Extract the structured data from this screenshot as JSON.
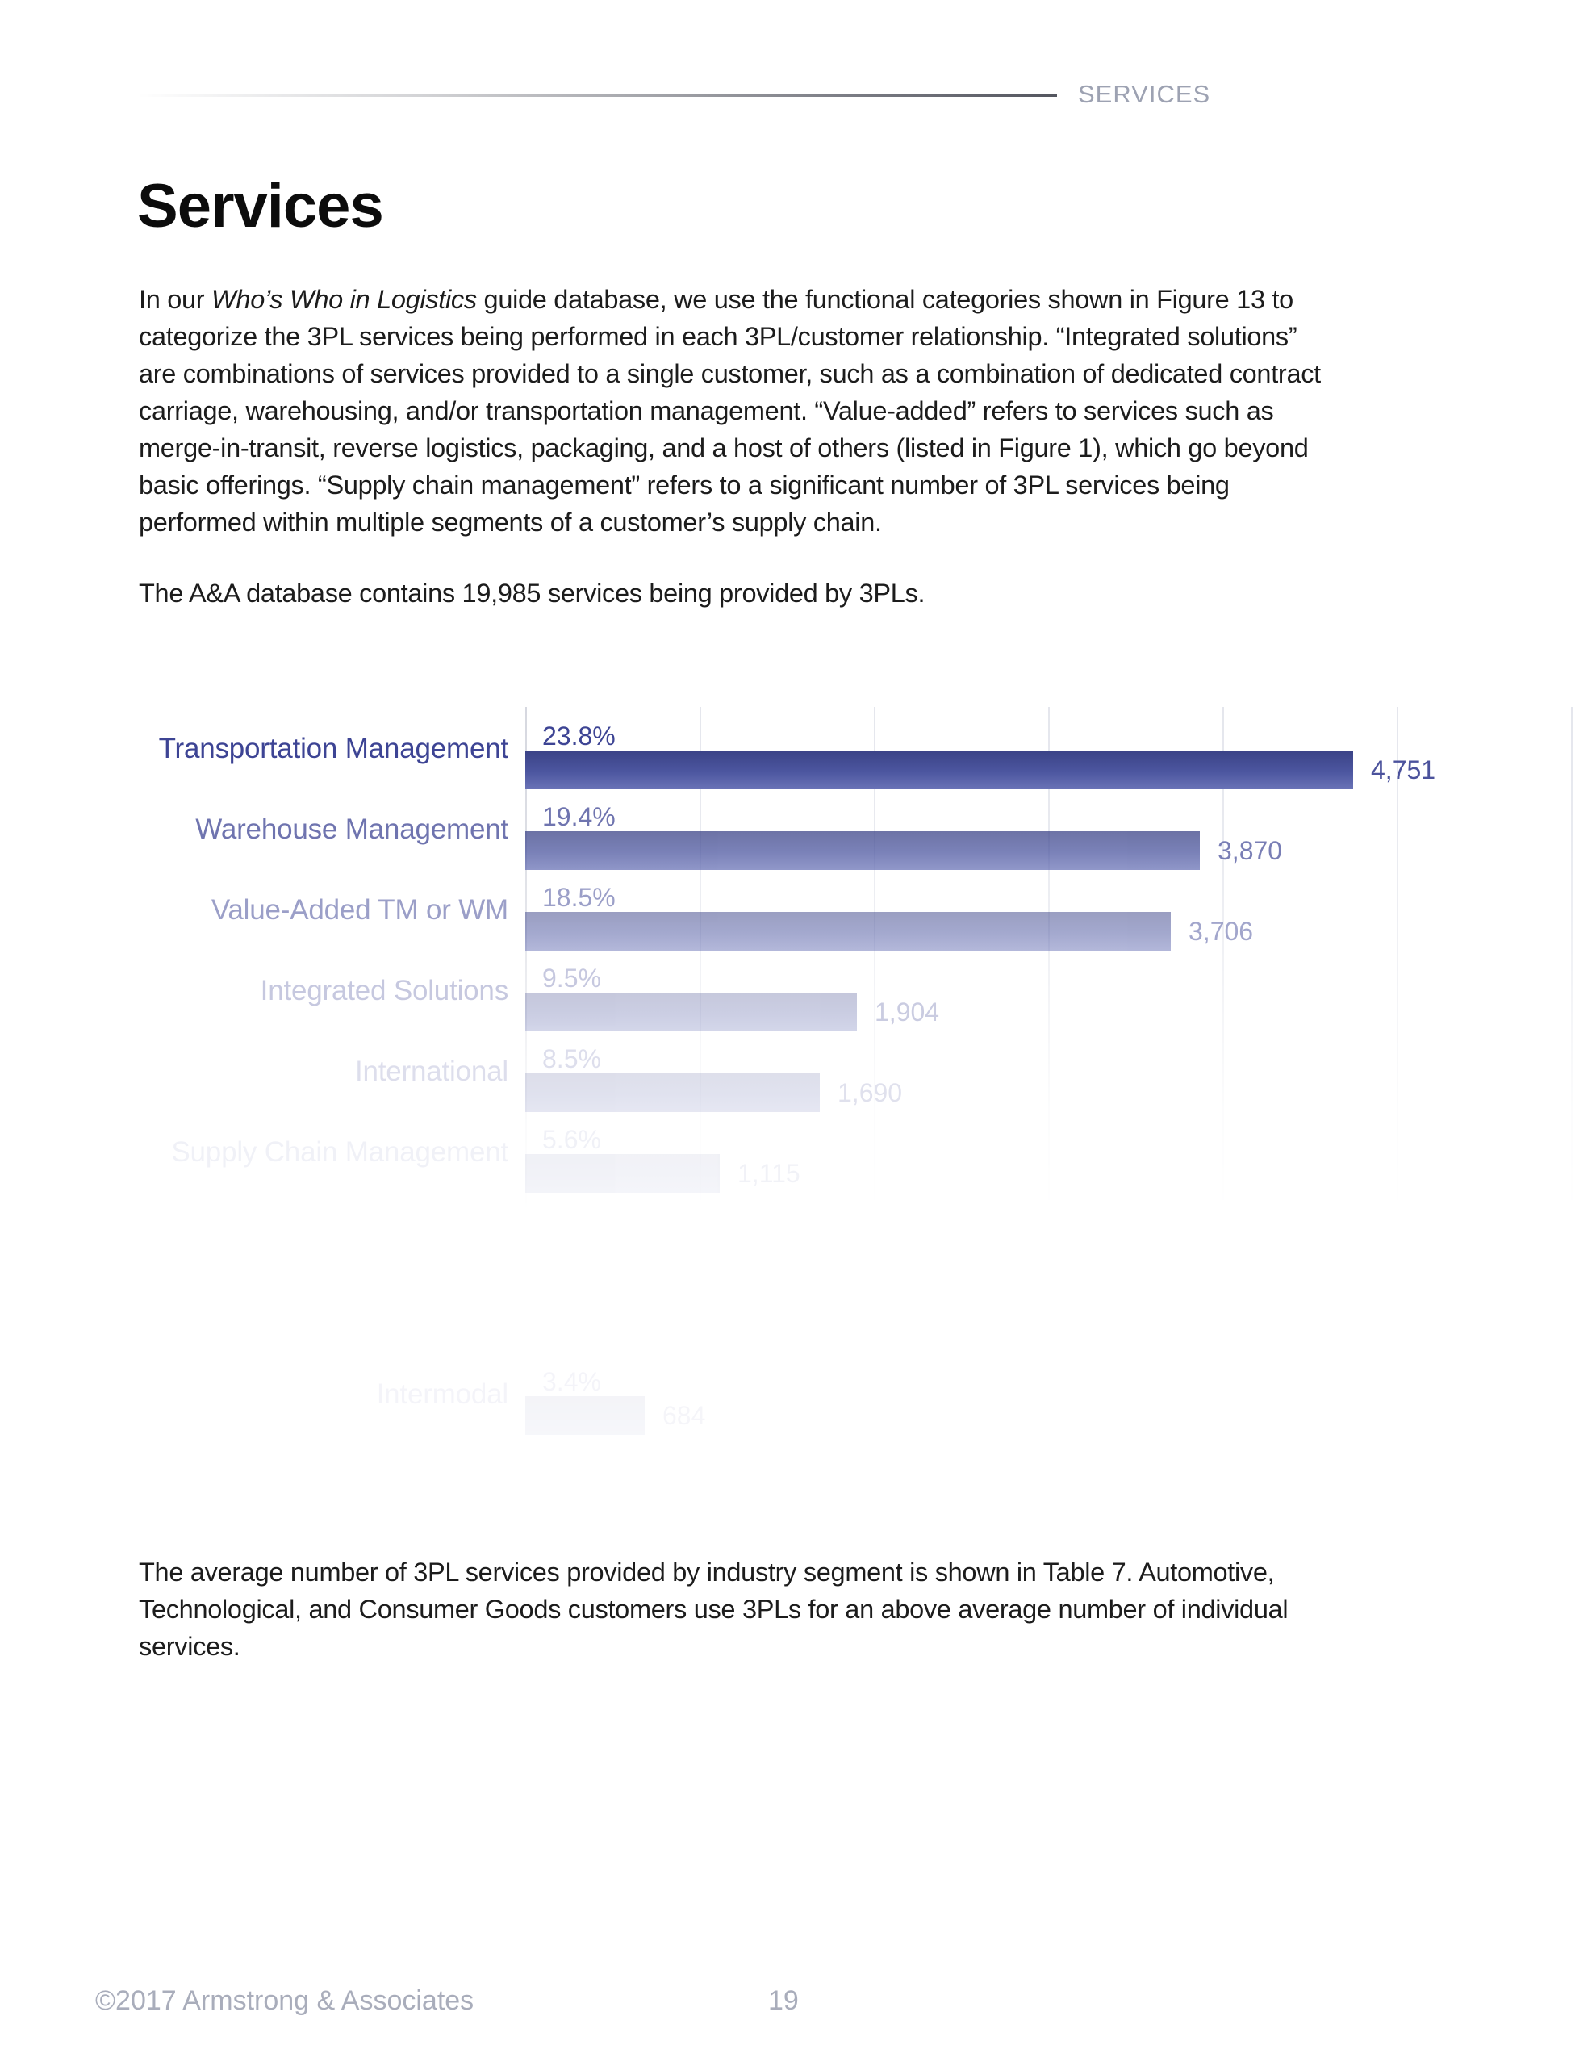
{
  "header": {
    "label": "SERVICES"
  },
  "title": "Services",
  "intro": {
    "line1_pre": "In our ",
    "line1_italic": "Who’s Who in Logistics",
    "line1_post": " guide database, we use the functional categories shown in Figure 13 to",
    "lines": [
      "categorize the 3PL services being performed in each 3PL/customer relationship. “Integrated solutions”",
      "are combinations of services provided to a single customer, such as a combination of dedicated contract",
      "carriage, warehousing, and/or transportation management. “Value-added” refers to services such as",
      "merge-in-transit, reverse logistics, packaging, and a host of others (listed in Figure 1), which go beyond",
      "basic offerings. “Supply chain management” refers to a significant number of 3PL services being",
      "performed within multiple segments of a customer’s supply chain."
    ]
  },
  "database_note": "The A&A database contains 19,985 services being provided by 3PLs.",
  "chart_data": {
    "type": "bar",
    "orientation": "horizontal",
    "title": "",
    "xlabel": "",
    "ylabel": "",
    "x_axis": {
      "max": 6000,
      "gridline_interval": 1000,
      "tick_labels_visible": false,
      "grid": true
    },
    "legend": "none",
    "note": "Figure fades to white toward the bottom: rows 7 and 8 are fully faded to invisible, row 9 (Intermodal) is barely visible.",
    "rows": [
      {
        "row": 1,
        "category": "Transportation Management",
        "percent": "23.8%",
        "value": 4751,
        "value_label": "4,751",
        "visibility": 1.0
      },
      {
        "row": 2,
        "category": "Warehouse Management",
        "percent": "19.4%",
        "value": 3870,
        "value_label": "3,870",
        "visibility": 0.74
      },
      {
        "row": 3,
        "category": "Value-Added TM or WM",
        "percent": "18.5%",
        "value": 3706,
        "value_label": "3,706",
        "visibility": 0.51
      },
      {
        "row": 4,
        "category": "Integrated Solutions",
        "percent": "9.5%",
        "value": 1904,
        "value_label": "1,904",
        "visibility": 0.29
      },
      {
        "row": 5,
        "category": "International",
        "percent": "8.5%",
        "value": 1690,
        "value_label": "1,690",
        "visibility": 0.17
      },
      {
        "row": 6,
        "category": "Supply Chain Management",
        "percent": "5.6%",
        "value": 1115,
        "value_label": "1,115",
        "visibility": 0.07
      },
      {
        "row": 9,
        "category": "Intermodal",
        "percent": "3.4%",
        "value": 684,
        "value_label": "684",
        "visibility": 0.05
      }
    ],
    "colors": {
      "bar_gradient_top": "#3a4286",
      "bar_gradient_bottom": "#6a73b6",
      "category_label": "#3d4494",
      "value_label": "#4b529c",
      "gridline": "#e3e5ec",
      "axis": "#d4d6de"
    }
  },
  "closing": {
    "lines": [
      "The average number of 3PL services provided by industry segment is shown in Table 7. Automotive,",
      "Technological, and Consumer Goods customers use 3PLs for an above average number of individual",
      "services."
    ]
  },
  "footer": {
    "copyright": "©2017 Armstrong & Associates",
    "page_number": "19"
  }
}
